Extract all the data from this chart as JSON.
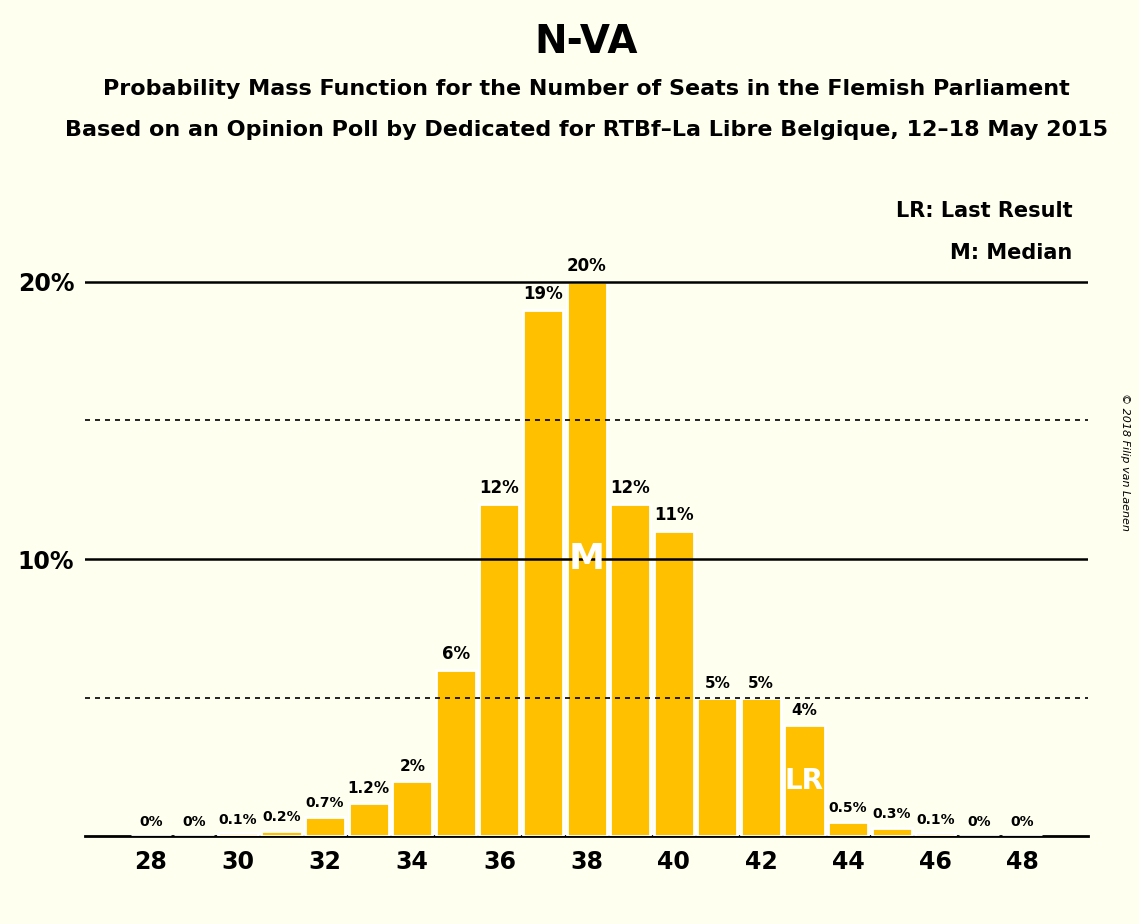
{
  "title": "N-VA",
  "subtitle1": "Probability Mass Function for the Number of Seats in the Flemish Parliament",
  "subtitle2": "Based on an Opinion Poll by Dedicated for RTBf–La Libre Belgique, 12–18 May 2015",
  "copyright": "© 2018 Filip van Laenen",
  "seats": [
    28,
    29,
    30,
    31,
    32,
    33,
    34,
    35,
    36,
    37,
    38,
    39,
    40,
    41,
    42,
    43,
    44,
    45,
    46,
    47,
    48
  ],
  "probs": [
    0.0,
    0.0,
    0.1,
    0.2,
    0.7,
    1.2,
    2.0,
    6.0,
    12.0,
    19.0,
    20.0,
    12.0,
    11.0,
    5.0,
    5.0,
    4.0,
    0.5,
    0.3,
    0.1,
    0.0,
    0.0
  ],
  "bar_labels": [
    "0%",
    "0%",
    "0.1%",
    "0.2%",
    "0.7%",
    "1.2%",
    "2%",
    "6%",
    "12%",
    "19%",
    "20%",
    "12%",
    "11%",
    "5%",
    "5%",
    "4%",
    "0.5%",
    "0.3%",
    "0.1%",
    "0%",
    "0%"
  ],
  "bar_color": "#FFC000",
  "bar_edge_color": "#FFFFFF",
  "bg_color": "#FFFFF0",
  "median_seat": 38,
  "lr_seat": 43,
  "solid_lines": [
    10.0,
    20.0
  ],
  "dotted_lines": [
    5.0,
    15.0
  ],
  "xlabel_seats": [
    28,
    30,
    32,
    34,
    36,
    38,
    40,
    42,
    44,
    46,
    48
  ],
  "ytick_labels": [
    "10%",
    "20%"
  ],
  "ytick_values": [
    10.0,
    20.0
  ],
  "legend_lr": "LR: Last Result",
  "legend_m": "M: Median",
  "bar_label_fontsize": 11,
  "title_fontsize": 28,
  "subtitle_fontsize": 16,
  "tick_fontsize": 17,
  "legend_fontsize": 15,
  "ylim": [
    0,
    23.5
  ],
  "xlim": [
    26.5,
    49.5
  ]
}
